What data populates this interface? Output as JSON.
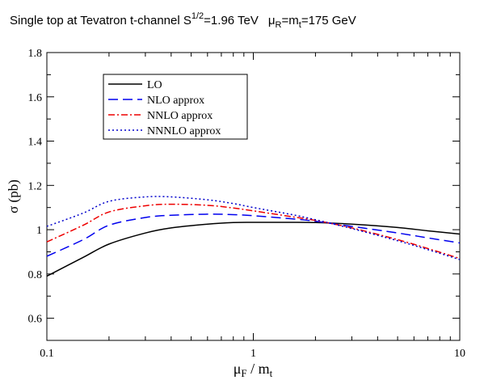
{
  "chart_data": {
    "type": "line",
    "title": {
      "main": "Single top at Tevatron  t-channel  S",
      "sqrt_exp": "1/2",
      "energy": "=1.96 TeV",
      "mu_r": "μ",
      "mu_r_sub": "R",
      "eq": "=m",
      "mt_sub": "t",
      "mass": "=175 GeV"
    },
    "xlabel": {
      "mu": "μ",
      "sub": "F",
      "slash": " / m",
      "sub2": "t"
    },
    "ylabel": "σ  (pb)",
    "x_scale": "log",
    "xlim": [
      0.1,
      10
    ],
    "ylim": [
      0.5,
      1.8
    ],
    "x_ticks": [
      0.1,
      1,
      10
    ],
    "x_tick_labels": [
      "0.1",
      "1",
      "10"
    ],
    "y_ticks": [
      0.6,
      0.8,
      1.0,
      1.2,
      1.4,
      1.6,
      1.8
    ],
    "y_tick_labels": [
      "0.6",
      "0.8",
      "1",
      "1.2",
      "1.4",
      "1.6",
      "1.8"
    ],
    "grid": false,
    "legend_position": "top-left",
    "series": [
      {
        "name": "LO",
        "color": "#000000",
        "dash": "solid",
        "points": [
          [
            0.1,
            0.79
          ],
          [
            0.15,
            0.875
          ],
          [
            0.2,
            0.935
          ],
          [
            0.3,
            0.985
          ],
          [
            0.4,
            1.008
          ],
          [
            0.6,
            1.025
          ],
          [
            0.8,
            1.032
          ],
          [
            1.0,
            1.033
          ],
          [
            1.5,
            1.033
          ],
          [
            2.0,
            1.032
          ],
          [
            3.0,
            1.025
          ],
          [
            5.0,
            1.01
          ],
          [
            7.0,
            0.995
          ],
          [
            10.0,
            0.98
          ]
        ]
      },
      {
        "name": "NLO approx",
        "color": "#0000ee",
        "dash": "long-dash",
        "points": [
          [
            0.1,
            0.88
          ],
          [
            0.15,
            0.955
          ],
          [
            0.2,
            1.02
          ],
          [
            0.3,
            1.055
          ],
          [
            0.4,
            1.065
          ],
          [
            0.6,
            1.07
          ],
          [
            0.8,
            1.068
          ],
          [
            1.0,
            1.063
          ],
          [
            1.5,
            1.05
          ],
          [
            2.0,
            1.038
          ],
          [
            3.0,
            1.015
          ],
          [
            5.0,
            0.985
          ],
          [
            7.0,
            0.963
          ],
          [
            10.0,
            0.94
          ]
        ]
      },
      {
        "name": "NNLO approx",
        "color": "#ee0000",
        "dash": "dash-dot",
        "points": [
          [
            0.1,
            0.945
          ],
          [
            0.15,
            1.02
          ],
          [
            0.2,
            1.08
          ],
          [
            0.3,
            1.108
          ],
          [
            0.4,
            1.115
          ],
          [
            0.6,
            1.11
          ],
          [
            0.8,
            1.098
          ],
          [
            1.0,
            1.085
          ],
          [
            1.5,
            1.06
          ],
          [
            2.0,
            1.042
          ],
          [
            3.0,
            1.008
          ],
          [
            5.0,
            0.955
          ],
          [
            7.0,
            0.915
          ],
          [
            10.0,
            0.87
          ]
        ]
      },
      {
        "name": "NNNLO approx",
        "color": "#0000cc",
        "dash": "dotted",
        "points": [
          [
            0.1,
            1.015
          ],
          [
            0.15,
            1.075
          ],
          [
            0.2,
            1.128
          ],
          [
            0.3,
            1.148
          ],
          [
            0.4,
            1.148
          ],
          [
            0.6,
            1.135
          ],
          [
            0.8,
            1.118
          ],
          [
            1.0,
            1.1
          ],
          [
            1.5,
            1.07
          ],
          [
            2.0,
            1.045
          ],
          [
            3.0,
            1.005
          ],
          [
            5.0,
            0.95
          ],
          [
            7.0,
            0.91
          ],
          [
            10.0,
            0.865
          ]
        ]
      }
    ]
  }
}
